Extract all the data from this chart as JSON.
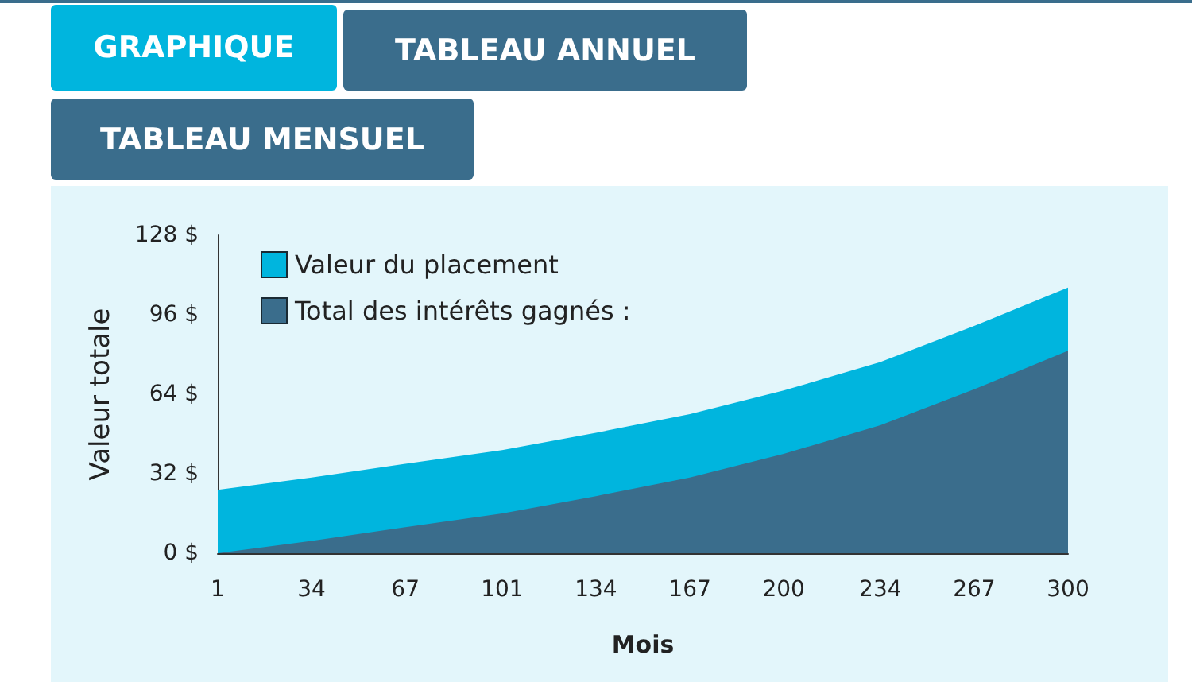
{
  "chart_data": {
    "type": "area",
    "xlabel": "Mois",
    "ylabel": "Valeur totale",
    "annotations": [
      "GRAPHIQUE",
      "TABLEAU ANNUEL",
      "TABLEAU MENSUEL"
    ],
    "x": [
      1,
      34,
      67,
      101,
      134,
      167,
      200,
      234,
      267,
      300
    ],
    "series": [
      {
        "name": "Valeur du placement",
        "color": "#00b5de",
        "values": [
          25.5,
          30.5,
          36,
          41.5,
          48.5,
          56,
          65.5,
          77,
          91.5,
          107
        ]
      },
      {
        "name": "Total des intérêts gagnés :",
        "color": "#3a6d8c",
        "values": [
          0,
          5,
          10.5,
          16,
          23,
          30.5,
          40,
          51.5,
          66,
          81.5
        ]
      }
    ],
    "xlim": [
      1,
      300
    ],
    "xticks": [
      1,
      34,
      67,
      101,
      134,
      167,
      200,
      234,
      267,
      300
    ],
    "ylim": [
      0,
      128
    ],
    "yticks": [
      {
        "value": 0,
        "label": "0 $"
      },
      {
        "value": 32,
        "label": "32 $"
      },
      {
        "value": 64,
        "label": "64 $"
      },
      {
        "value": 96,
        "label": "96 $"
      },
      {
        "value": 128,
        "label": "128 $"
      }
    ],
    "grid": false,
    "legend": "top left"
  }
}
